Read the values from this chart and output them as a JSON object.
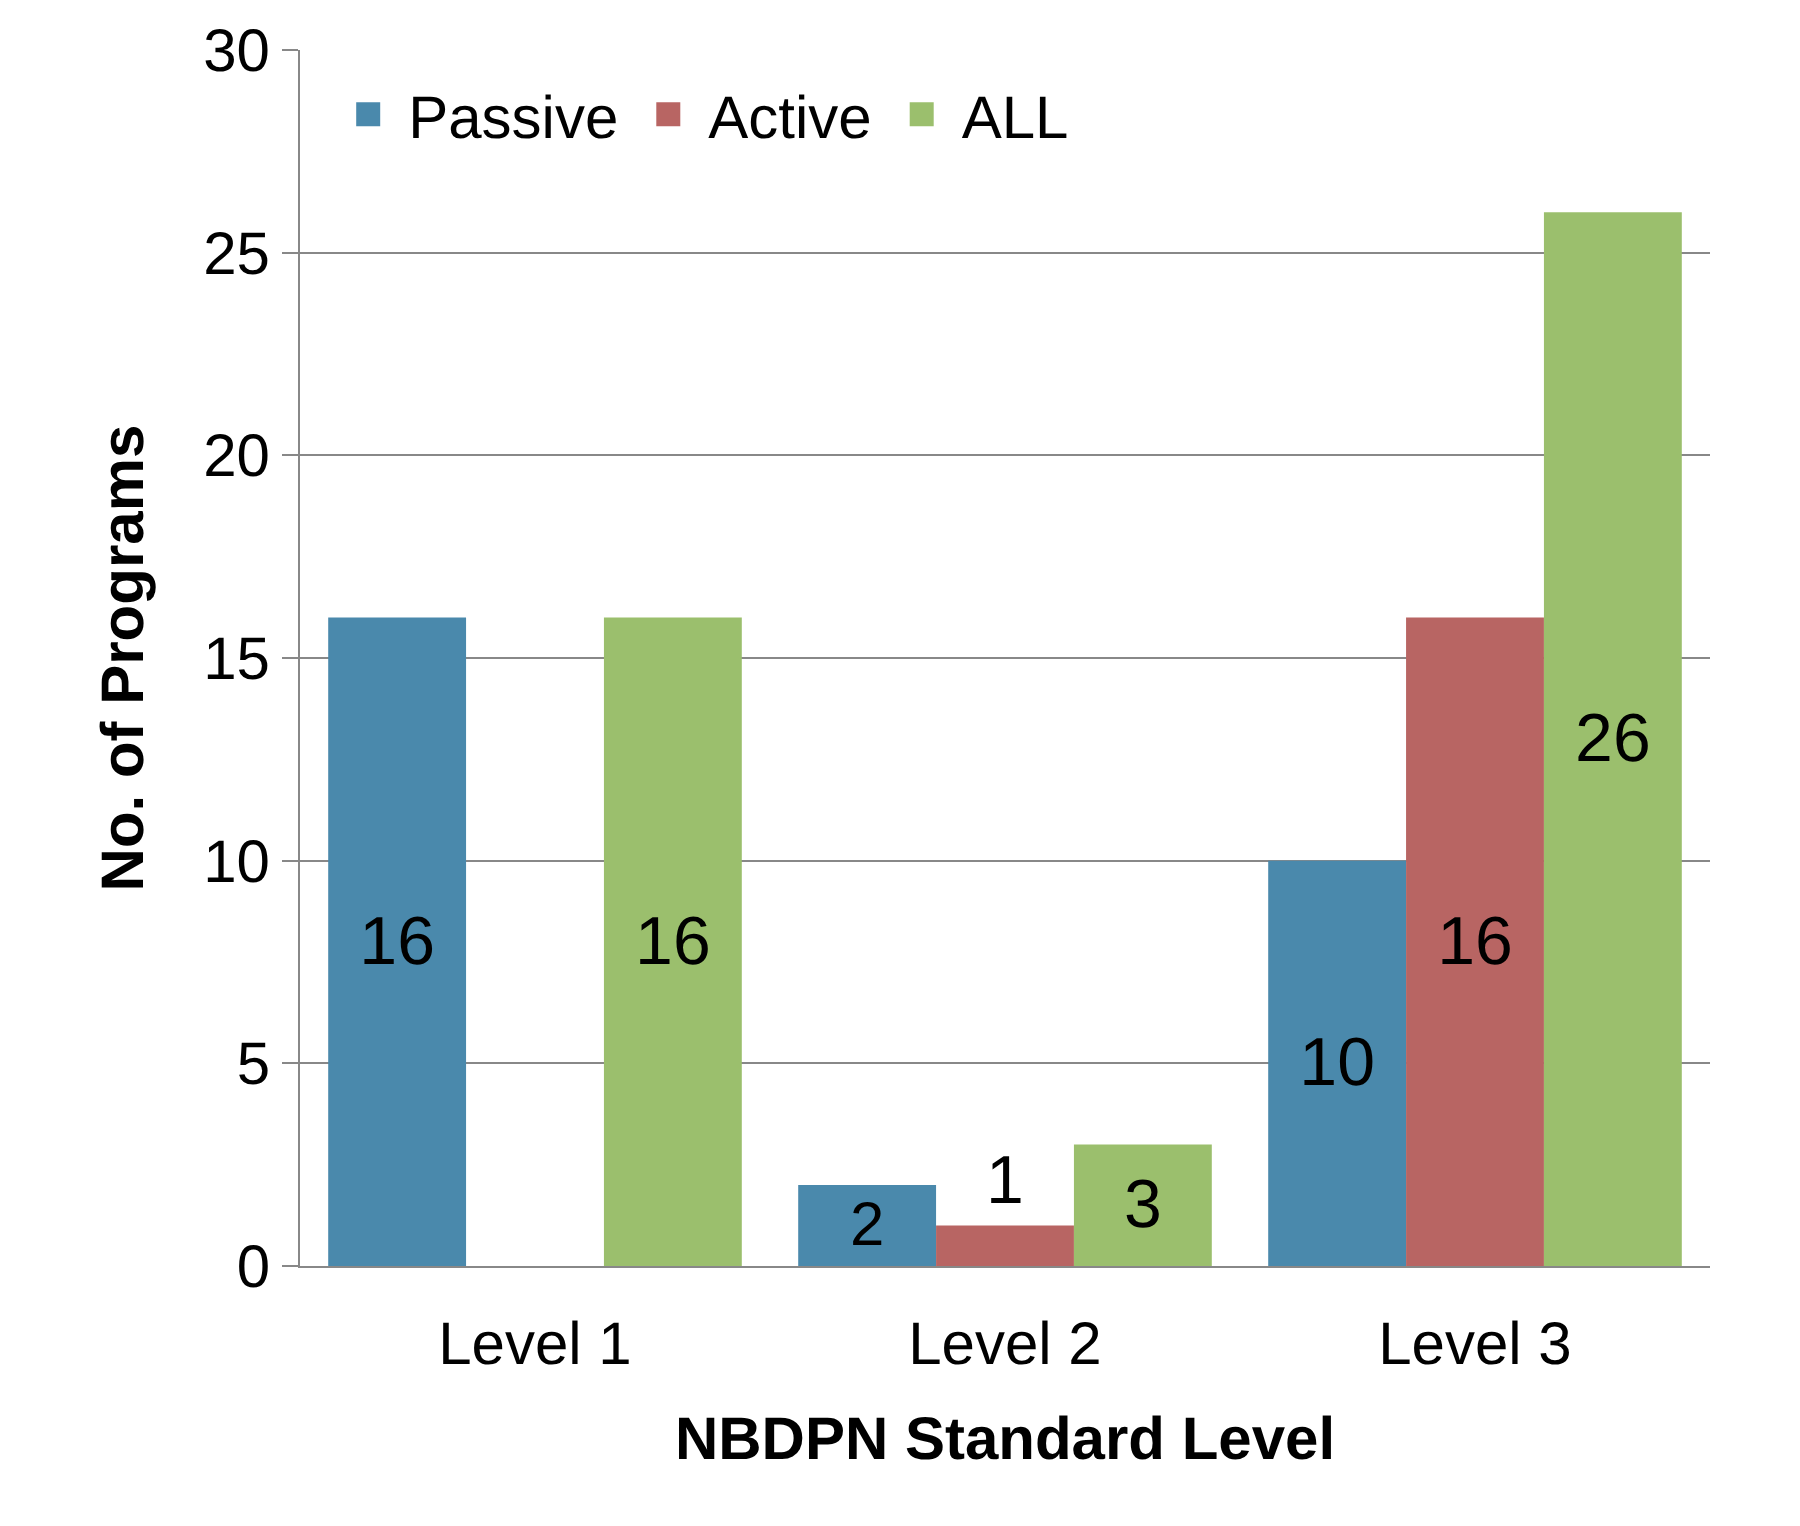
{
  "chart_data": {
    "type": "bar",
    "xlabel": "NBDPN Standard Level",
    "ylabel": "No. of Programs",
    "categories": [
      "Level 1",
      "Level 2",
      "Level 3"
    ],
    "series": [
      {
        "name": "Passive",
        "color": "#4a89ac",
        "values": [
          16,
          2,
          10
        ]
      },
      {
        "name": "Active",
        "color": "#b86563",
        "values": [
          null,
          1,
          16
        ]
      },
      {
        "name": "ALL",
        "color": "#9bbf6d",
        "values": [
          16,
          3,
          26
        ]
      }
    ],
    "ylim": [
      0,
      30
    ],
    "yticks": [
      0,
      5,
      10,
      15,
      20,
      25,
      30
    ],
    "grid": "y",
    "legend": "top left",
    "data_labels": true
  }
}
